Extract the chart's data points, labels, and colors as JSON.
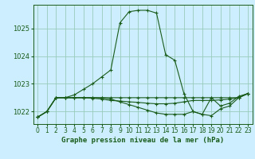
{
  "title": "Graphe pression niveau de la mer (hPa)",
  "background_color": "#cceeff",
  "plot_bg_color": "#cceeff",
  "grid_color": "#99ccbb",
  "line_color": "#1a5c1a",
  "xlim": [
    -0.5,
    23.5
  ],
  "ylim": [
    1021.55,
    1025.85
  ],
  "yticks": [
    1022,
    1023,
    1024,
    1025
  ],
  "xticks": [
    0,
    1,
    2,
    3,
    4,
    5,
    6,
    7,
    8,
    9,
    10,
    11,
    12,
    13,
    14,
    15,
    16,
    17,
    18,
    19,
    20,
    21,
    22,
    23
  ],
  "series1_x": [
    0,
    1,
    2,
    3,
    4,
    5,
    6,
    7,
    8,
    9,
    10,
    11,
    12,
    13,
    14,
    15,
    16,
    17,
    18,
    19,
    20,
    21,
    22,
    23
  ],
  "series1_y": [
    1021.8,
    1022.0,
    1022.5,
    1022.5,
    1022.6,
    1022.8,
    1023.0,
    1023.25,
    1023.5,
    1025.2,
    1025.6,
    1025.65,
    1025.65,
    1025.55,
    1024.05,
    1023.85,
    1022.65,
    1022.0,
    1021.9,
    1022.5,
    1022.2,
    1022.3,
    1022.55,
    1022.65
  ],
  "series2_x": [
    0,
    1,
    2,
    3,
    4,
    5,
    6,
    7,
    8,
    9,
    10,
    11,
    12,
    13,
    14,
    15,
    16,
    17,
    18,
    19,
    20,
    21,
    22,
    23
  ],
  "series2_y": [
    1021.8,
    1022.0,
    1022.5,
    1022.5,
    1022.5,
    1022.5,
    1022.5,
    1022.5,
    1022.45,
    1022.35,
    1022.25,
    1022.15,
    1022.05,
    1021.95,
    1021.9,
    1021.9,
    1021.9,
    1022.0,
    1021.9,
    1021.85,
    1022.1,
    1022.2,
    1022.5,
    1022.65
  ],
  "series3_x": [
    0,
    1,
    2,
    3,
    4,
    5,
    6,
    7,
    8,
    9,
    10,
    11,
    12,
    13,
    14,
    15,
    16,
    17,
    18,
    19,
    20,
    21,
    22,
    23
  ],
  "series3_y": [
    1021.8,
    1022.0,
    1022.5,
    1022.5,
    1022.5,
    1022.5,
    1022.48,
    1022.45,
    1022.4,
    1022.38,
    1022.35,
    1022.33,
    1022.3,
    1022.28,
    1022.28,
    1022.3,
    1022.35,
    1022.4,
    1022.4,
    1022.4,
    1022.42,
    1022.45,
    1022.5,
    1022.65
  ],
  "series4_x": [
    0,
    1,
    2,
    3,
    4,
    5,
    6,
    7,
    8,
    9,
    10,
    11,
    12,
    13,
    14,
    15,
    16,
    17,
    18,
    19,
    20,
    21,
    22,
    23
  ],
  "series4_y": [
    1021.8,
    1022.0,
    1022.5,
    1022.5,
    1022.5,
    1022.5,
    1022.5,
    1022.5,
    1022.5,
    1022.5,
    1022.5,
    1022.5,
    1022.5,
    1022.5,
    1022.5,
    1022.5,
    1022.5,
    1022.5,
    1022.5,
    1022.5,
    1022.5,
    1022.5,
    1022.5,
    1022.65
  ],
  "tick_fontsize": 5.5,
  "title_fontsize": 6.5,
  "figsize": [
    3.2,
    2.0
  ],
  "dpi": 100
}
